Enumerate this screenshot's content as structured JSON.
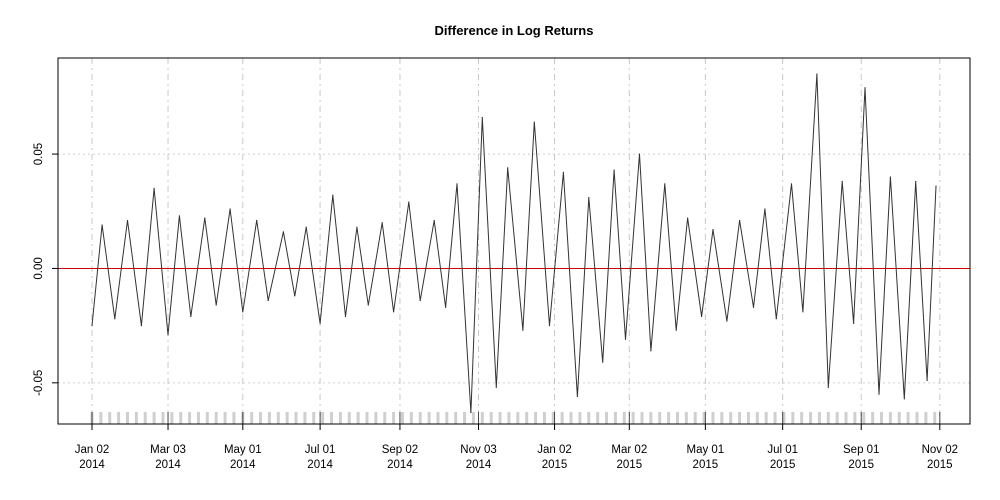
{
  "chart_data": {
    "type": "line",
    "title": "Difference in Log Returns",
    "xlabel": "",
    "ylabel": "",
    "x_range": [
      "2014-01-02",
      "2015-10-30"
    ],
    "ylim": [
      -0.068,
      0.092
    ],
    "y_ticks": [
      {
        "value": -0.05,
        "label": "-0.05"
      },
      {
        "value": 0.0,
        "label": "0.00"
      },
      {
        "value": 0.05,
        "label": "0.05"
      }
    ],
    "x_ticks": [
      {
        "date": "2014-01-02",
        "label1": "Jan 02",
        "label2": "2014"
      },
      {
        "date": "2014-03-03",
        "label1": "Mar 03",
        "label2": "2014"
      },
      {
        "date": "2014-05-01",
        "label1": "May 01",
        "label2": "2014"
      },
      {
        "date": "2014-07-01",
        "label1": "Jul 01",
        "label2": "2014"
      },
      {
        "date": "2014-09-02",
        "label1": "Sep 02",
        "label2": "2014"
      },
      {
        "date": "2014-11-03",
        "label1": "Nov 03",
        "label2": "2014"
      },
      {
        "date": "2015-01-02",
        "label1": "Jan 02",
        "label2": "2015"
      },
      {
        "date": "2015-03-02",
        "label1": "Mar 02",
        "label2": "2015"
      },
      {
        "date": "2015-05-01",
        "label1": "May 01",
        "label2": "2015"
      },
      {
        "date": "2015-07-01",
        "label1": "Jul 01",
        "label2": "2015"
      },
      {
        "date": "2015-09-01",
        "label1": "Sep 01",
        "label2": "2015"
      },
      {
        "date": "2015-11-02",
        "label1": "Nov 02",
        "label2": "2015"
      }
    ],
    "grid": true,
    "reference_line": {
      "y": 0.0,
      "color": "#d10000"
    },
    "series": [
      {
        "color": "#333333",
        "x": [
          "2014-01-02",
          "2014-01-10",
          "2014-01-20",
          "2014-01-30",
          "2014-02-10",
          "2014-02-20",
          "2014-03-03",
          "2014-03-12",
          "2014-03-21",
          "2014-04-01",
          "2014-04-10",
          "2014-04-21",
          "2014-05-01",
          "2014-05-12",
          "2014-05-21",
          "2014-06-02",
          "2014-06-11",
          "2014-06-20",
          "2014-07-01",
          "2014-07-11",
          "2014-07-21",
          "2014-07-30",
          "2014-08-08",
          "2014-08-19",
          "2014-08-28",
          "2014-09-09",
          "2014-09-18",
          "2014-09-29",
          "2014-10-08",
          "2014-10-17",
          "2014-10-28",
          "2014-11-06",
          "2014-11-17",
          "2014-11-26",
          "2014-12-08",
          "2014-12-17",
          "2014-12-29",
          "2015-01-09",
          "2015-01-20",
          "2015-01-29",
          "2015-02-09",
          "2015-02-18",
          "2015-02-27",
          "2015-03-10",
          "2015-03-19",
          "2015-03-30",
          "2015-04-08",
          "2015-04-17",
          "2015-04-28",
          "2015-05-07",
          "2015-05-18",
          "2015-05-28",
          "2015-06-08",
          "2015-06-17",
          "2015-06-26",
          "2015-07-08",
          "2015-07-17",
          "2015-07-28",
          "2015-08-06",
          "2015-08-17",
          "2015-08-26",
          "2015-09-04",
          "2015-09-15",
          "2015-09-24",
          "2015-10-05",
          "2015-10-14",
          "2015-10-23",
          "2015-10-30"
        ],
        "y": [
          -0.025,
          0.019,
          -0.022,
          0.021,
          -0.025,
          0.035,
          -0.029,
          0.023,
          -0.021,
          0.022,
          -0.016,
          0.026,
          -0.019,
          0.021,
          -0.014,
          0.016,
          -0.012,
          0.018,
          -0.024,
          0.032,
          -0.021,
          0.018,
          -0.016,
          0.02,
          -0.019,
          0.029,
          -0.014,
          0.021,
          -0.017,
          0.037,
          -0.063,
          0.066,
          -0.052,
          0.044,
          -0.027,
          0.064,
          -0.025,
          0.042,
          -0.056,
          0.031,
          -0.041,
          0.043,
          -0.031,
          0.05,
          -0.036,
          0.037,
          -0.027,
          0.022,
          -0.021,
          0.017,
          -0.023,
          0.021,
          -0.017,
          0.026,
          -0.022,
          0.037,
          -0.019,
          0.085,
          -0.052,
          0.038,
          -0.024,
          0.079,
          -0.055,
          0.04,
          -0.057,
          0.038,
          -0.049,
          0.036
        ]
      }
    ]
  }
}
